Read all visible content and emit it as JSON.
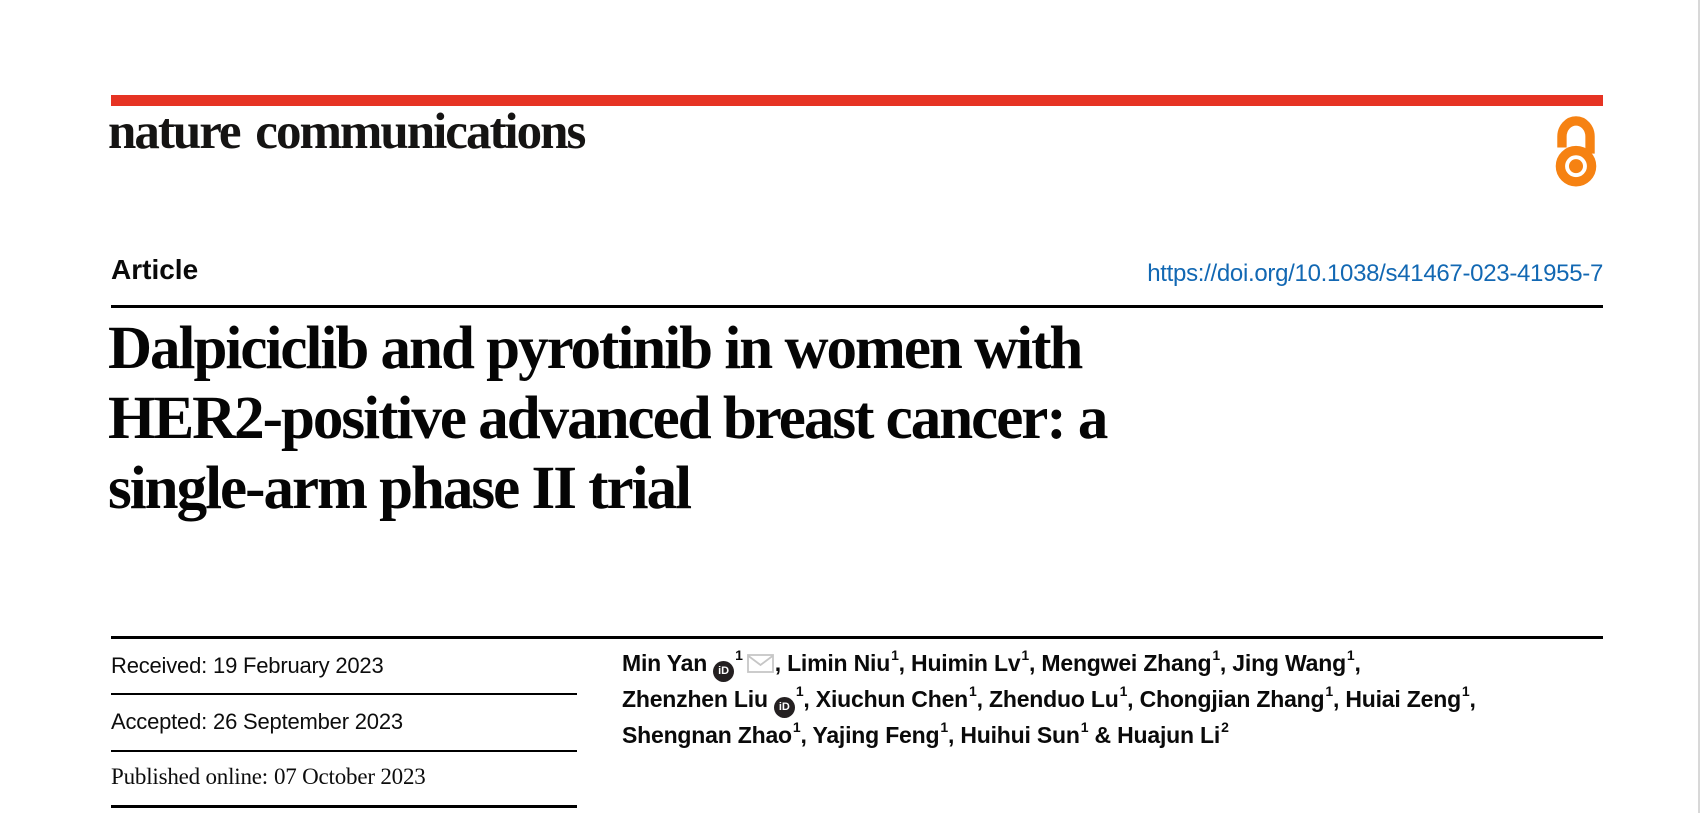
{
  "colors": {
    "accent_red": "#e63323",
    "link_blue": "#1268b3",
    "oa_orange": "#f68212",
    "text_black": "#0a0a0a",
    "envelope_gray": "#c6c6c6"
  },
  "journal": {
    "name": "nature communications",
    "open_access_icon": "open-access-lock-icon"
  },
  "article": {
    "label": "Article",
    "doi": "https://doi.org/10.1038/s41467-023-41955-7"
  },
  "title": {
    "full": "Dalpiciclib and pyrotinib in women with HER2-positive advanced breast cancer: a single-arm phase II trial",
    "lines": [
      "Dalpiciclib and pyrotinib in women with",
      "HER2-positive advanced breast cancer: a",
      "single-arm phase II trial"
    ]
  },
  "dates": {
    "items": [
      {
        "label": "Received:",
        "value": "19 February 2023"
      },
      {
        "label": "Accepted:",
        "value": "26 September 2023"
      },
      {
        "label": "Published online:",
        "value": "07 October 2023"
      }
    ]
  },
  "authors": {
    "orcid_icon_text": "iD",
    "separator": ", ",
    "final_separator": " & ",
    "list": [
      {
        "name": "Min Yan",
        "orcid": true,
        "sup": "1",
        "email": true
      },
      {
        "name": "Limin Niu",
        "sup": "1"
      },
      {
        "name": "Huimin Lv",
        "sup": "1"
      },
      {
        "name": "Mengwei Zhang",
        "sup": "1"
      },
      {
        "name": "Jing Wang",
        "sup": "1",
        "break_after": true
      },
      {
        "name": "Zhenzhen Liu",
        "orcid": true,
        "sup": "1"
      },
      {
        "name": "Xiuchun Chen",
        "sup": "1"
      },
      {
        "name": "Zhenduo Lu",
        "sup": "1"
      },
      {
        "name": "Chongjian Zhang",
        "sup": "1"
      },
      {
        "name": "Huiai Zeng",
        "sup": "1",
        "break_after": true
      },
      {
        "name": "Shengnan Zhao",
        "sup": "1"
      },
      {
        "name": "Yajing Feng",
        "sup": "1"
      },
      {
        "name": "Huihui Sun",
        "sup": "1"
      },
      {
        "name": "Huajun Li",
        "sup": "2"
      }
    ]
  }
}
